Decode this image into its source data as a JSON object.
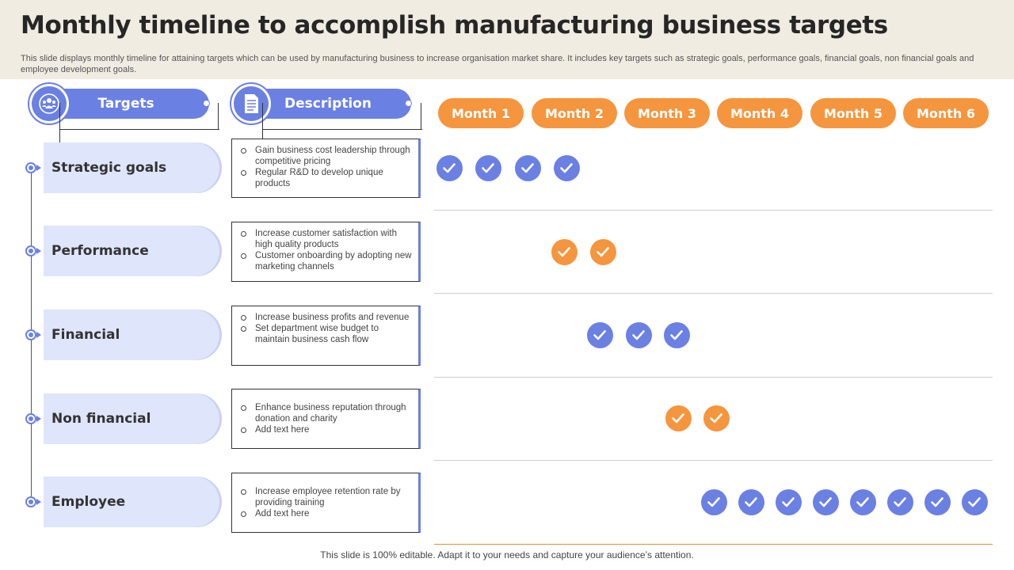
{
  "header": {
    "title": "Monthly timeline to accomplish manufacturing business targets",
    "subtitle": "This slide displays monthly timeline for attaining targets which can be used by manufacturing business to increase organisation market share. It includes key targets such as strategic goals, performance goals, financial goals, non financial goals and employee development goals."
  },
  "columns": {
    "targets_label": "Targets",
    "targets_icon": "team-icon",
    "description_label": "Description",
    "description_icon": "document-icon"
  },
  "months": [
    "Month 1",
    "Month 2",
    "Month 3",
    "Month 4",
    "Month 5",
    "Month 6"
  ],
  "rows": [
    {
      "target": "Strategic goals",
      "desc": [
        "Gain business cost leadership through competitive pricing",
        "Regular R&D to develop unique products"
      ],
      "checks": 4,
      "check_color": "blue"
    },
    {
      "target": "Performance",
      "desc": [
        "Increase customer satisfaction with high quality products",
        "Customer onboarding by adopting new marketing channels"
      ],
      "checks": 2,
      "check_color": "orange"
    },
    {
      "target": "Financial",
      "desc": [
        "Increase business profits and revenue",
        "Set department wise budget to maintain business cash flow"
      ],
      "checks": 3,
      "check_color": "blue"
    },
    {
      "target": "Non financial",
      "desc": [
        "Enhance business reputation through donation and charity",
        "Add text here"
      ],
      "checks": 2,
      "check_color": "orange"
    },
    {
      "target": "Employee",
      "desc": [
        "Increase employee retention rate by providing training",
        "Add text here"
      ],
      "checks": 8,
      "check_color": "blue"
    }
  ],
  "colors": {
    "accent_blue": "#6b80e3",
    "accent_orange": "#f5953d",
    "pill_bg": "#dfe5fb",
    "header_bg": "#f0ece2"
  },
  "footer": "This slide is 100% editable. Adapt it to your needs and capture your audience’s attention."
}
